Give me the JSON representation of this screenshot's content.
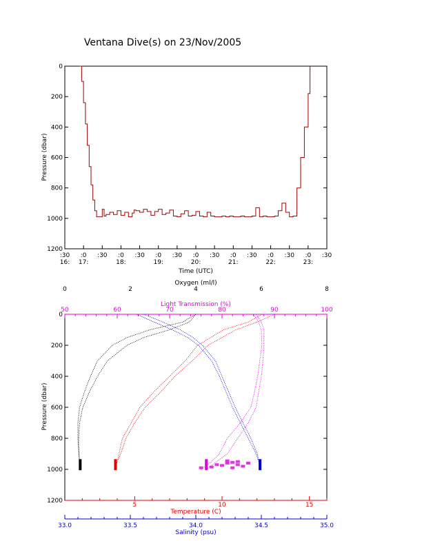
{
  "title": "Ventana Dive(s) on 23/Nov/2005",
  "colors": {
    "black": "#000000",
    "red": "#e00000",
    "blue": "#0000d0",
    "magenta": "#e000e0",
    "dark_red": "#a00000"
  },
  "chart_data": [
    {
      "type": "line",
      "title": "Ventana Dive(s) on 23/Nov/2005",
      "xlabel": "Time (UTC)",
      "ylabel": "Pressure (dbar)",
      "x_ticks_top": [
        ":30",
        ":0",
        ":30",
        ":0",
        ":30",
        ":0",
        ":30",
        ":0",
        ":30",
        ":0",
        ":30",
        ":0",
        ":30",
        ":0",
        ":30"
      ],
      "x_ticks_hour": [
        "16:",
        "17:",
        "18:",
        "19:",
        "20:",
        "21:",
        "22:",
        "23:"
      ],
      "xlim_hours": [
        16.5,
        23.5
      ],
      "y_ticks": [
        "0",
        "200",
        "400",
        "600",
        "800",
        "1000",
        "1200"
      ],
      "ylim": [
        1200,
        0
      ],
      "grid": false,
      "series": [
        {
          "time_h": [
            16.9,
            16.95,
            17.0,
            17.05,
            17.1,
            17.15,
            17.2,
            17.25,
            17.3,
            17.35,
            17.4,
            17.5,
            17.55,
            17.6,
            17.7,
            17.8,
            17.9,
            18.0,
            18.1,
            18.2,
            18.3,
            18.35,
            18.4,
            18.5,
            18.6,
            18.7,
            18.8,
            18.9,
            19.0,
            19.1,
            19.2,
            19.3,
            19.4,
            19.5,
            19.6,
            19.7,
            19.8,
            19.9,
            20.0,
            20.1,
            20.2,
            20.3,
            20.4,
            20.5,
            20.6,
            20.7,
            20.8,
            20.9,
            21.0,
            21.1,
            21.2,
            21.3,
            21.4,
            21.5,
            21.6,
            21.7,
            21.8,
            21.9,
            22.0,
            22.1,
            22.2,
            22.3,
            22.4,
            22.5,
            22.6,
            22.7,
            22.8,
            22.9,
            23.0,
            23.05
          ],
          "pressure": [
            0,
            100,
            240,
            380,
            520,
            660,
            780,
            880,
            950,
            990,
            990,
            940,
            985,
            975,
            960,
            975,
            950,
            980,
            960,
            990,
            965,
            945,
            950,
            960,
            940,
            955,
            980,
            955,
            940,
            975,
            965,
            945,
            985,
            990,
            970,
            950,
            985,
            980,
            955,
            985,
            990,
            960,
            985,
            990,
            990,
            985,
            990,
            985,
            990,
            990,
            985,
            990,
            990,
            985,
            930,
            990,
            985,
            990,
            990,
            985,
            950,
            900,
            960,
            990,
            985,
            800,
            600,
            400,
            180,
            0
          ]
        }
      ]
    },
    {
      "type": "scatter",
      "ylabel": "Pressure (dbar)",
      "y_ticks": [
        "0",
        "200",
        "400",
        "600",
        "800",
        "1000",
        "1200"
      ],
      "ylim": [
        1200,
        0
      ],
      "axes": {
        "oxygen": {
          "label": "Oxygen (ml/l)",
          "ticks": [
            "0",
            "2",
            "4",
            "6",
            "8"
          ],
          "range": [
            0,
            8
          ]
        },
        "light": {
          "label": "Light Transmission (%)",
          "ticks": [
            "50",
            "60",
            "70",
            "80",
            "90",
            "100"
          ],
          "range": [
            50,
            100
          ]
        },
        "temperature": {
          "label": "Temperature (C)",
          "ticks": [
            "5",
            "10",
            "15"
          ],
          "range": [
            1.0,
            16.0
          ]
        },
        "salinity": {
          "label": "Salinity (psu)",
          "ticks": [
            "33.0",
            "33.5",
            "34.0",
            "34.5",
            "35.0"
          ],
          "range": [
            33.0,
            35.0
          ]
        }
      },
      "series": [
        {
          "variable": "oxygen",
          "pressure": [
            0,
            50,
            100,
            150,
            200,
            300,
            400,
            500,
            600,
            700,
            800,
            900,
            950,
            1000
          ],
          "values": [
            4.0,
            3.6,
            2.6,
            1.9,
            1.45,
            1.0,
            0.78,
            0.6,
            0.45,
            0.4,
            0.4,
            0.43,
            0.45,
            0.47
          ],
          "values_b": [
            4.0,
            3.8,
            3.2,
            2.4,
            1.9,
            1.3,
            1.0,
            0.75,
            0.55,
            0.45,
            0.42,
            0.43,
            0.45,
            0.47
          ]
        },
        {
          "variable": "temperature",
          "pressure": [
            0,
            50,
            100,
            200,
            300,
            400,
            500,
            600,
            700,
            800,
            900,
            950,
            1000
          ],
          "values": [
            13.0,
            12.0,
            10.8,
            9.2,
            8.3,
            7.3,
            6.5,
            5.6,
            5.0,
            4.5,
            4.2,
            4.0,
            3.9
          ],
          "values_b": [
            12.3,
            11.5,
            10.1,
            8.6,
            7.9,
            7.0,
            6.1,
            5.3,
            4.8,
            4.3,
            4.1,
            4.0,
            3.9
          ]
        },
        {
          "variable": "salinity",
          "pressure": [
            0,
            50,
            100,
            150,
            200,
            300,
            400,
            500,
            600,
            700,
            800,
            900,
            950,
            1000
          ],
          "values": [
            33.6,
            33.75,
            33.88,
            33.98,
            34.05,
            34.15,
            34.2,
            34.25,
            34.3,
            34.36,
            34.42,
            34.47,
            34.48,
            34.49
          ],
          "values_b": [
            33.55,
            33.68,
            33.82,
            33.94,
            34.02,
            34.12,
            34.18,
            34.23,
            34.28,
            34.34,
            34.4,
            34.46,
            34.48,
            34.49
          ]
        },
        {
          "variable": "light",
          "pressure": [
            0,
            50,
            100,
            200,
            300,
            400,
            500,
            600,
            700,
            800,
            900,
            950,
            1000
          ],
          "values": [
            86.5,
            87.5,
            88.0,
            88.0,
            87.8,
            87.5,
            87.0,
            86.5,
            85.0,
            83.0,
            81.0,
            79.0,
            77.0
          ],
          "values_b": [
            86.0,
            87.0,
            87.5,
            87.6,
            87.2,
            86.8,
            86.2,
            85.5,
            83.5,
            81.0,
            79.5,
            78.0,
            76.0
          ]
        }
      ]
    }
  ]
}
